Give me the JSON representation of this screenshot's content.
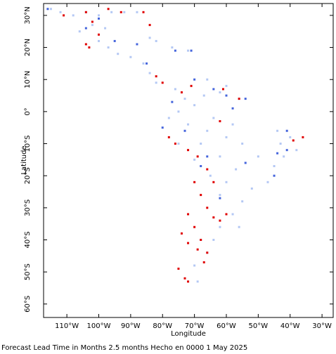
{
  "chart_data": {
    "type": "scatter",
    "xlabel": "Longitude",
    "ylabel": "Latitude",
    "caption": "Forecast Lead Time in Months 2.5 months Hecho en 0000 1 May 2025",
    "xlim": [
      -117.3,
      -26.5
    ],
    "ylim": [
      -64.2,
      33.7
    ],
    "xticks": [
      {
        "value": -110,
        "label": "110°W"
      },
      {
        "value": -100,
        "label": "100°W"
      },
      {
        "value": -90,
        "label": "90°W"
      },
      {
        "value": -80,
        "label": "80°W"
      },
      {
        "value": -70,
        "label": "70°W"
      },
      {
        "value": -60,
        "label": "60°W"
      },
      {
        "value": -50,
        "label": "50°W"
      },
      {
        "value": -40,
        "label": "40°W"
      },
      {
        "value": -30,
        "label": "30°W"
      }
    ],
    "yticks": [
      {
        "value": 30,
        "label": "30°N"
      },
      {
        "value": 20,
        "label": "20°N"
      },
      {
        "value": 10,
        "label": "10°N"
      },
      {
        "value": 0,
        "label": "0°"
      },
      {
        "value": -10,
        "label": "10°S"
      },
      {
        "value": -20,
        "label": "20°S"
      },
      {
        "value": -30,
        "label": "30°S"
      },
      {
        "value": -40,
        "label": "40°S"
      },
      {
        "value": -50,
        "label": "50°S"
      },
      {
        "value": -60,
        "label": "60°S"
      }
    ],
    "grid": false,
    "series": [
      {
        "color": "#b4c8f4",
        "x": [
          -115,
          -112,
          -108,
          -104,
          -100,
          -96,
          -92,
          -88,
          -102,
          -98,
          -106,
          -100,
          -97,
          -94,
          -90,
          -86,
          -84,
          -82,
          -76,
          -73,
          -70,
          -75,
          -78,
          -72,
          -66,
          -60,
          -55,
          -50,
          -45,
          -47,
          -52,
          -55,
          -58,
          -62,
          -65,
          -70,
          -75,
          -68,
          -62,
          -57,
          -60,
          -56,
          -62,
          -64,
          -66,
          -70,
          -69,
          -68,
          -44,
          -40,
          -38,
          -42,
          -43,
          -60,
          -62,
          -56,
          -66,
          -67,
          -64,
          -58,
          -84,
          -82,
          -77,
          -72
        ],
        "values": [
          32,
          31,
          30,
          31,
          30,
          31,
          31,
          31,
          27,
          26,
          25,
          22,
          20,
          18,
          17,
          15,
          12,
          9,
          7,
          4,
          2,
          0,
          -2,
          -4,
          -6,
          -8,
          -10,
          -14,
          -17,
          -22,
          -24,
          -28,
          -32,
          -26,
          -20,
          -15,
          -10,
          -10,
          -14,
          -18,
          -22,
          -36,
          -36,
          -40,
          -44,
          -48,
          -53,
          -40,
          -6,
          -8,
          -12,
          -14,
          -10,
          8,
          6,
          4,
          10,
          5,
          -2,
          -4,
          23,
          22,
          20,
          19
        ]
      },
      {
        "color": "#4464dc",
        "x": [
          -116,
          -100,
          -104,
          -95,
          -88,
          -85,
          -76,
          -71,
          -70,
          -60,
          -54,
          -77,
          -80,
          -73,
          -66,
          -54,
          -45,
          -68,
          -62,
          -41,
          -41,
          -44,
          -64,
          -58
        ],
        "values": [
          32,
          29,
          26,
          22,
          21,
          15,
          19,
          19,
          10,
          5,
          4,
          3,
          -5,
          -6,
          -14,
          -16,
          -20,
          -17,
          -27,
          -6,
          -12,
          -13,
          7,
          1
        ]
      },
      {
        "color": "#e00000",
        "x": [
          -111,
          -104,
          -97,
          -93,
          -86,
          -84,
          -102,
          -100,
          -103,
          -104,
          -82,
          -80,
          -71,
          -74,
          -61,
          -56,
          -78,
          -76,
          -72,
          -69,
          -66,
          -64,
          -70,
          -68,
          -72,
          -66,
          -64,
          -62,
          -60,
          -74,
          -70,
          -68,
          -72,
          -69,
          -66,
          -75,
          -73,
          -72,
          -39,
          -36,
          -67,
          -62
        ],
        "values": [
          30,
          31,
          32,
          31,
          31,
          27,
          28,
          24,
          20,
          21,
          11,
          9,
          8,
          6,
          7,
          4,
          -8,
          -10,
          -12,
          -14,
          -18,
          -22,
          -22,
          -26,
          -32,
          -30,
          -33,
          -34,
          -32,
          -38,
          -36,
          -40,
          -41,
          -43,
          -44,
          -49,
          -52,
          -53,
          -9,
          -8,
          -47,
          -3
        ]
      }
    ]
  }
}
